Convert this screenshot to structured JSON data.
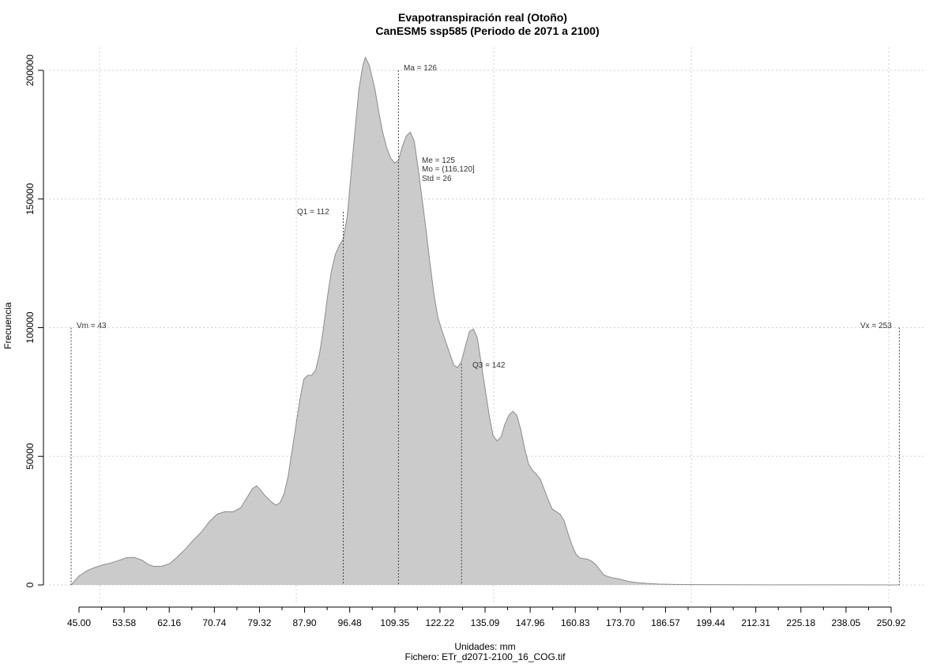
{
  "chart_data": {
    "type": "area",
    "title": "Evapotranspiración real (Otoño)",
    "subtitle": "CanESM5 ssp585 (Periodo de 2071 a 2100)",
    "xlabel": "Unidades: mm",
    "file_label": "Fichero: ETr_d2071-2100_16_COG.tif",
    "ylabel": "Frecuencia",
    "xlim": [
      43,
      253
    ],
    "ylim": [
      0,
      200000
    ],
    "grid": true,
    "fill_color": "#cbcbcb",
    "line_color": "#8c8c8c",
    "x_ticks": [
      "45.00",
      "53.58",
      "62.16",
      "70.74",
      "79.32",
      "87.90",
      "96.48",
      "109.35",
      "122.22",
      "135.09",
      "147.96",
      "160.83",
      "173.70",
      "186.57",
      "199.44",
      "212.31",
      "225.18",
      "238.05",
      "250.92"
    ],
    "y_ticks": [
      "0",
      "50000",
      "100000",
      "150000",
      "200000"
    ],
    "y_tick_values": [
      0,
      50000,
      100000,
      150000,
      200000
    ],
    "annotations": {
      "vm": "Vm = 43",
      "q1": "Q1 = 112",
      "ma": "Ma = 126",
      "me": "Me = 125",
      "mo": "Mo = (116,120]",
      "std": "Std = 26",
      "q3": "Q3 = 142",
      "vx": "Vx = 253"
    },
    "marker_values": {
      "vm": 43,
      "q1": 112,
      "ma": 126,
      "q3": 142,
      "vx": 253
    },
    "points": [
      [
        43,
        0
      ],
      [
        45,
        3500
      ],
      [
        47,
        5500
      ],
      [
        49,
        6800
      ],
      [
        51,
        7800
      ],
      [
        53,
        8500
      ],
      [
        54,
        9000
      ],
      [
        56,
        10000
      ],
      [
        57,
        10600
      ],
      [
        59,
        10700
      ],
      [
        61,
        9600
      ],
      [
        62.5,
        8000
      ],
      [
        64,
        7200
      ],
      [
        66,
        7300
      ],
      [
        68,
        8300
      ],
      [
        70,
        11000
      ],
      [
        72,
        14000
      ],
      [
        74,
        17500
      ],
      [
        76,
        20500
      ],
      [
        78,
        24500
      ],
      [
        80,
        27500
      ],
      [
        82,
        28500
      ],
      [
        84,
        28400
      ],
      [
        86,
        30000
      ],
      [
        88,
        35000
      ],
      [
        89,
        37500
      ],
      [
        90,
        38500
      ],
      [
        91,
        37000
      ],
      [
        92,
        35000
      ],
      [
        94,
        32000
      ],
      [
        95,
        31000
      ],
      [
        96,
        32000
      ],
      [
        97,
        35500
      ],
      [
        98,
        42000
      ],
      [
        99,
        52000
      ],
      [
        100,
        62000
      ],
      [
        101,
        72000
      ],
      [
        102,
        80000
      ],
      [
        103,
        81500
      ],
      [
        104,
        81500
      ],
      [
        105,
        83500
      ],
      [
        106,
        90000
      ],
      [
        107,
        100000
      ],
      [
        108,
        112000
      ],
      [
        109,
        122000
      ],
      [
        110,
        128500
      ],
      [
        111,
        132000
      ],
      [
        112,
        134500
      ],
      [
        113,
        143000
      ],
      [
        114,
        160000
      ],
      [
        115,
        177000
      ],
      [
        116,
        193000
      ],
      [
        117,
        202000
      ],
      [
        117.6,
        205000
      ],
      [
        118.6,
        202000
      ],
      [
        120,
        193000
      ],
      [
        121,
        184000
      ],
      [
        122,
        176000
      ],
      [
        123,
        170000
      ],
      [
        124,
        166000
      ],
      [
        125,
        164000
      ],
      [
        126,
        165000
      ],
      [
        127,
        170500
      ],
      [
        128,
        174500
      ],
      [
        129,
        176000
      ],
      [
        130,
        172500
      ],
      [
        131,
        162000
      ],
      [
        132,
        150000
      ],
      [
        133,
        138000
      ],
      [
        134,
        125000
      ],
      [
        135,
        113000
      ],
      [
        136,
        104000
      ],
      [
        137,
        99000
      ],
      [
        138,
        94500
      ],
      [
        139,
        90000
      ],
      [
        140,
        85500
      ],
      [
        141,
        84500
      ],
      [
        142,
        87000
      ],
      [
        143,
        93000
      ],
      [
        144,
        98500
      ],
      [
        145,
        99500
      ],
      [
        146,
        96000
      ],
      [
        147,
        86000
      ],
      [
        148,
        76000
      ],
      [
        149,
        66000
      ],
      [
        150,
        58000
      ],
      [
        151,
        56000
      ],
      [
        152,
        57500
      ],
      [
        153,
        62500
      ],
      [
        154,
        66000
      ],
      [
        155,
        67500
      ],
      [
        156,
        66000
      ],
      [
        157,
        60500
      ],
      [
        158,
        53000
      ],
      [
        159,
        47000
      ],
      [
        160,
        44500
      ],
      [
        161,
        43000
      ],
      [
        162,
        41000
      ],
      [
        163,
        37000
      ],
      [
        164,
        33000
      ],
      [
        165,
        29500
      ],
      [
        166,
        28500
      ],
      [
        167,
        27500
      ],
      [
        168,
        25000
      ],
      [
        169,
        20000
      ],
      [
        170,
        15500
      ],
      [
        171,
        12000
      ],
      [
        172,
        10500
      ],
      [
        173,
        10200
      ],
      [
        174,
        10000
      ],
      [
        175,
        9200
      ],
      [
        176,
        8000
      ],
      [
        177,
        6000
      ],
      [
        178,
        4000
      ],
      [
        179,
        3300
      ],
      [
        180,
        2900
      ],
      [
        182,
        2300
      ],
      [
        184,
        1500
      ],
      [
        186,
        1000
      ],
      [
        189,
        600
      ],
      [
        192,
        350
      ],
      [
        196,
        200
      ],
      [
        205,
        100
      ],
      [
        220,
        50
      ],
      [
        240,
        20
      ],
      [
        253,
        0
      ]
    ]
  }
}
